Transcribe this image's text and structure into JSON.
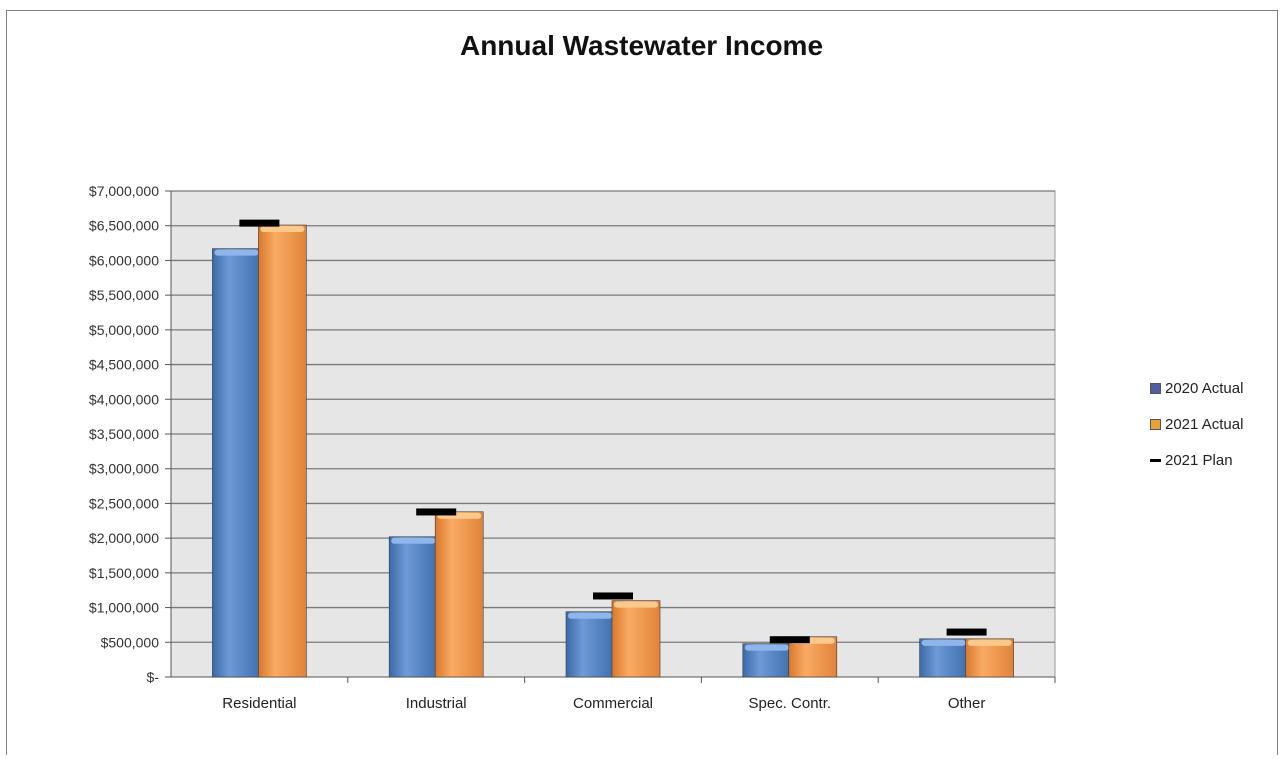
{
  "chart_data": {
    "type": "bar",
    "title": "Annual Wastewater Income",
    "categories": [
      "Residential",
      "Industrial",
      "Commercial",
      "Spec. Contr.",
      "Other"
    ],
    "series": [
      {
        "name": "2020 Actual",
        "kind": "bar",
        "color": "#4f81bd",
        "values": [
          6170000,
          2020000,
          940000,
          480000,
          550000
        ]
      },
      {
        "name": "2021 Actual",
        "kind": "bar",
        "color": "#f79646",
        "values": [
          6510000,
          2380000,
          1100000,
          580000,
          550000
        ]
      },
      {
        "name": "2021 Plan",
        "kind": "marker",
        "color": "#000000",
        "values": [
          6530000,
          2370000,
          1160000,
          530000,
          640000
        ]
      }
    ],
    "ylim": [
      0,
      7000000
    ],
    "yticks": [
      0,
      500000,
      1000000,
      1500000,
      2000000,
      2500000,
      3000000,
      3500000,
      4000000,
      4500000,
      5000000,
      5500000,
      6000000,
      6500000,
      7000000
    ],
    "ytick_labels": [
      "$-",
      "$500,000",
      "$1,000,000",
      "$1,500,000",
      "$2,000,000",
      "$2,500,000",
      "$3,000,000",
      "$3,500,000",
      "$4,000,000",
      "$4,500,000",
      "$5,000,000",
      "$5,500,000",
      "$6,000,000",
      "$6,500,000",
      "$7,000,000"
    ],
    "grid": true,
    "plot_background": "#e6e6e6",
    "legend_position": "right"
  }
}
